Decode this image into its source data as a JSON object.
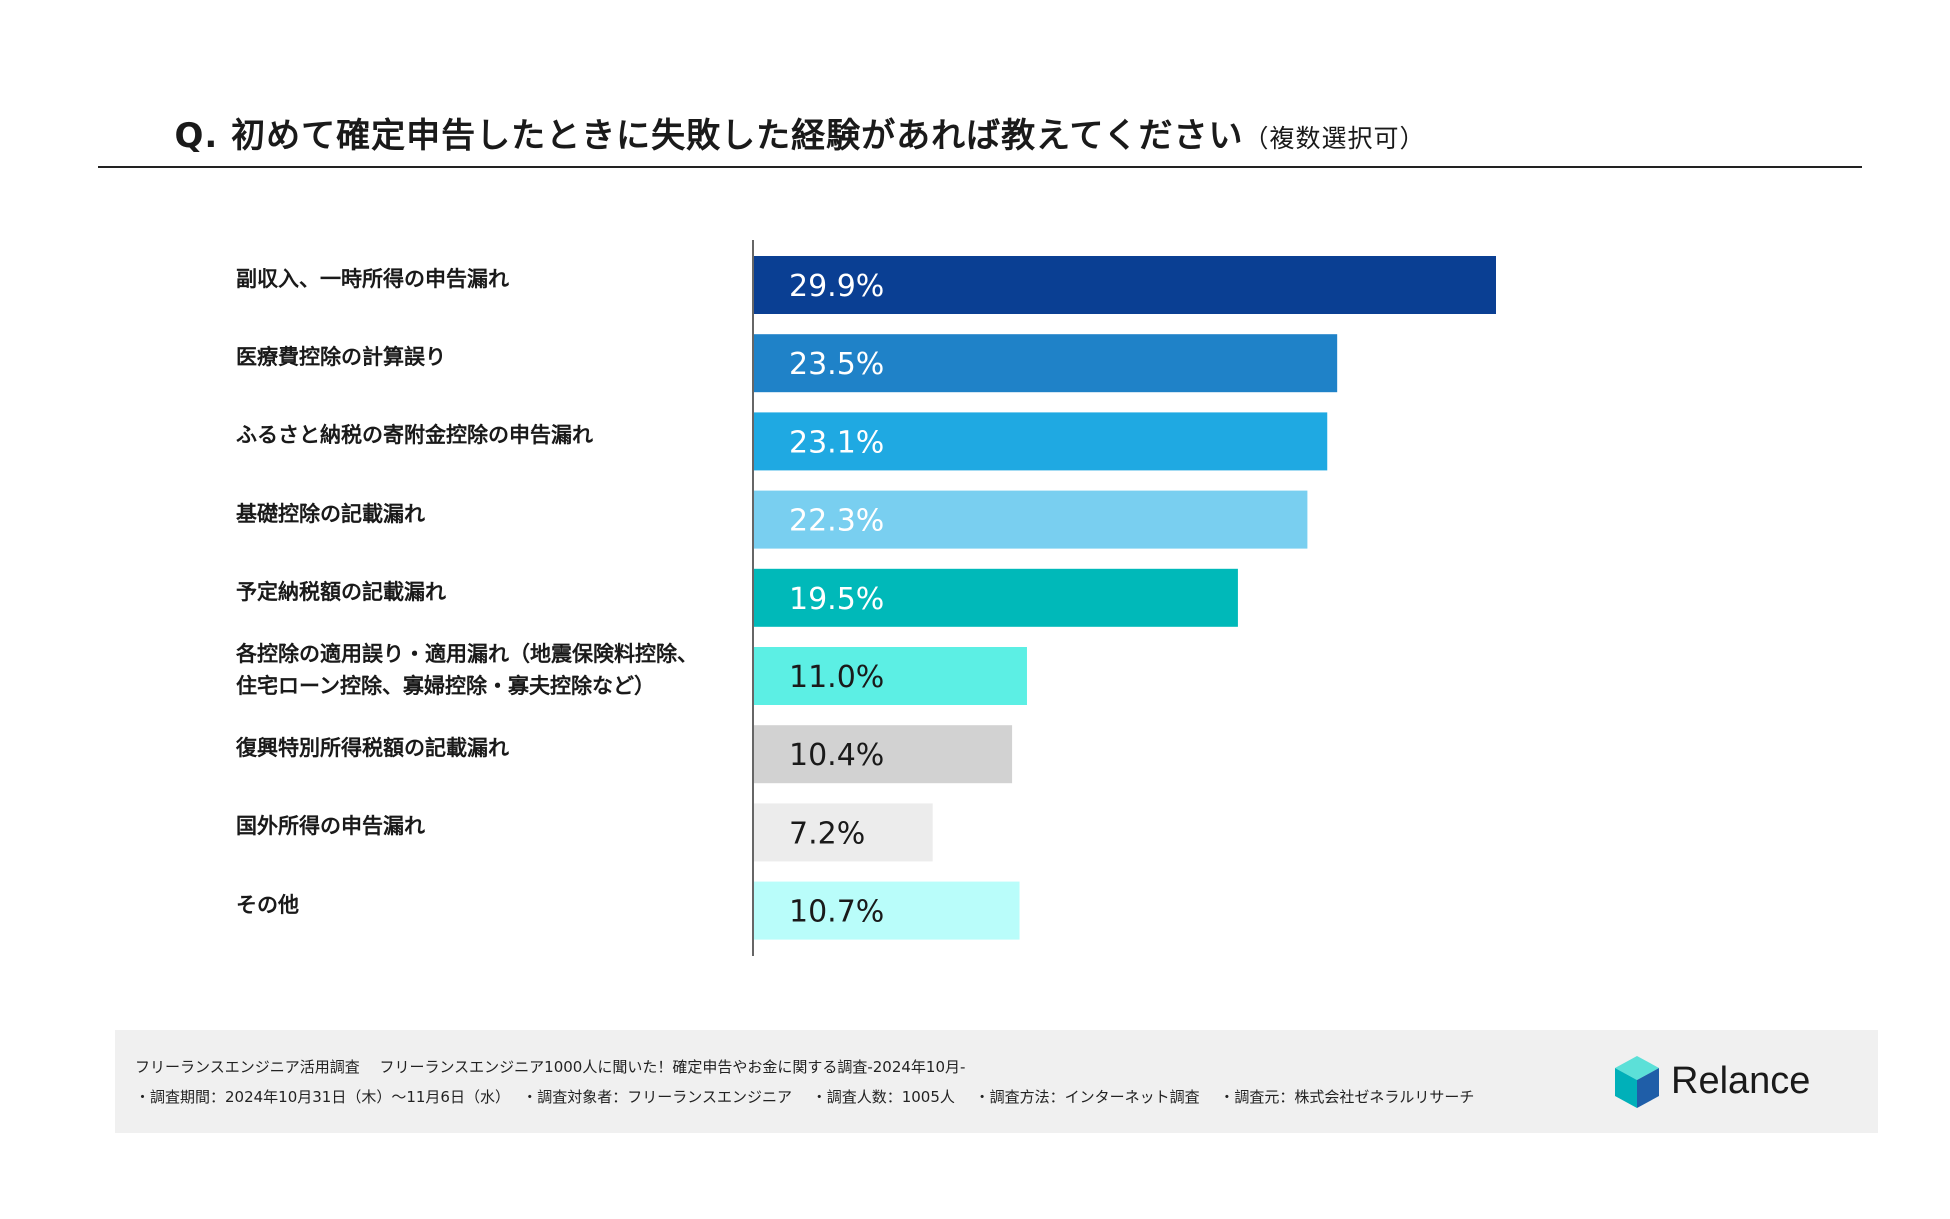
{
  "title": {
    "main": "Q. 初めて確定申告したときに失敗した経験があれば教えてください",
    "sub": "（複数選択可）"
  },
  "chart_data": {
    "type": "bar",
    "orientation": "horizontal",
    "unit": "%",
    "xlim": [
      0,
      40
    ],
    "categories": [
      "副収入、一時所得の申告漏れ",
      "医療費控除の計算誤り",
      "ふるさと納税の寄附金控除の申告漏れ",
      "基礎控除の記載漏れ",
      "予定納税額の記載漏れ",
      "各控除の適用誤り・適用漏れ（地震保険料控除、\n住宅ローン控除、寡婦控除・寡夫控除など）",
      "復興特別所得税額の記載漏れ",
      "国外所得の申告漏れ",
      "その他"
    ],
    "values": [
      29.9,
      23.5,
      23.1,
      22.3,
      19.5,
      11.0,
      10.4,
      7.2,
      10.7
    ],
    "value_labels": [
      "29.9%",
      "23.5%",
      "23.1%",
      "22.3%",
      "19.5%",
      "11.0%",
      "10.4%",
      "7.2%",
      "10.7%"
    ],
    "colors": [
      "#0a3f93",
      "#1f82c8",
      "#1fa9e2",
      "#79cff0",
      "#00b9b9",
      "#5cefe4",
      "#d2d2d2",
      "#ececec",
      "#b9fdfa"
    ],
    "label_colors": [
      "#ffffff",
      "#ffffff",
      "#ffffff",
      "#ffffff",
      "#ffffff",
      "#1a1a1a",
      "#1a1a1a",
      "#1a1a1a",
      "#1a1a1a"
    ]
  },
  "footer": {
    "line1": "フリーランスエンジニア活用調査　 フリーランスエンジニア1000人に聞いた！確定申告やお金に関する調査-2024年10月-",
    "line2": "・調査期間：2024年10月31日（木）～11月6日（水）　 ・調査対象者：フリーランスエンジニア　 ・調査人数：1005人　 ・調査方法：インターネット調査　 ・調査元：株式会社ゼネラルリサーチ"
  },
  "logo": {
    "text": "Relance",
    "colors": [
      "#00b0b9",
      "#1f5ea8",
      "#5ce0d8"
    ]
  }
}
